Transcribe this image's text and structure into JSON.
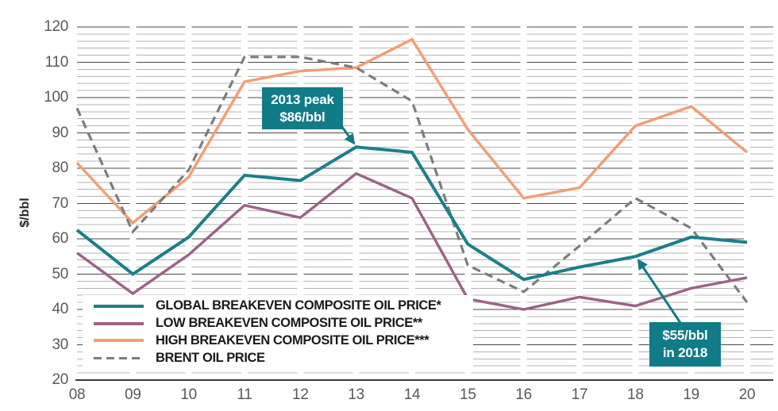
{
  "page": {
    "background": "#ffffff"
  },
  "chart_data": {
    "type": "line",
    "title": "",
    "xlabel": "",
    "ylabel": "$/bbl",
    "x_tick_labels": [
      "08",
      "09",
      "10",
      "11",
      "12",
      "13",
      "14",
      "15",
      "16",
      "17",
      "18",
      "19",
      "20"
    ],
    "y_ticks": [
      20,
      30,
      40,
      50,
      60,
      70,
      80,
      90,
      100,
      110,
      120
    ],
    "ylim": [
      20,
      120
    ],
    "y_major_step": 10,
    "y_minor_step": 2,
    "grid": {
      "minor_color": "#b4b4b4",
      "major_color": "#484848",
      "axis_color": "#3a3a3a",
      "segmented_at_year_ticks": true
    },
    "tick_label_color": "#595959",
    "legend_position": "inside-bottom-left",
    "series": [
      {
        "name": "GLOBAL BREAKEVEN COMPOSITE OIL PRICE*",
        "color": "#1a7f8b",
        "style": "solid",
        "values": [
          62.5,
          50,
          60.5,
          78,
          76.5,
          86,
          84.5,
          58.5,
          48.5,
          52,
          55,
          60.5,
          59
        ]
      },
      {
        "name": "LOW BREAKEVEN COMPOSITE OIL PRICE**",
        "color": "#9b6386",
        "style": "solid",
        "values": [
          56,
          44.5,
          55.5,
          69.5,
          66,
          78.5,
          71.5,
          43,
          40,
          43.5,
          41,
          46,
          49
        ]
      },
      {
        "name": "HIGH BREAKEVEN COMPOSITE OIL PRICE***",
        "color": "#f29e73",
        "style": "solid",
        "values": [
          81.5,
          64.5,
          77.5,
          104.5,
          107.5,
          108.5,
          116.5,
          91,
          71.5,
          74.5,
          92,
          97.5,
          84.5
        ]
      },
      {
        "name": "BRENT OIL PRICE",
        "color": "#7d7d7d",
        "style": "dashed",
        "values": [
          97,
          62,
          79.5,
          111.5,
          111.5,
          108.5,
          99,
          52.5,
          45,
          58,
          71.5,
          63,
          42
        ]
      }
    ],
    "annotations": [
      {
        "id": "peak-2013",
        "lines": [
          "2013 peak",
          "$86/bbl"
        ],
        "target_year": "13",
        "target_value": 86,
        "box_color": "#117b87",
        "text_color": "#ffffff"
      },
      {
        "id": "value-2018",
        "lines": [
          "$55/bbl",
          "in 2018"
        ],
        "target_year": "18",
        "target_value": 55,
        "box_color": "#117b87",
        "text_color": "#ffffff"
      }
    ]
  }
}
